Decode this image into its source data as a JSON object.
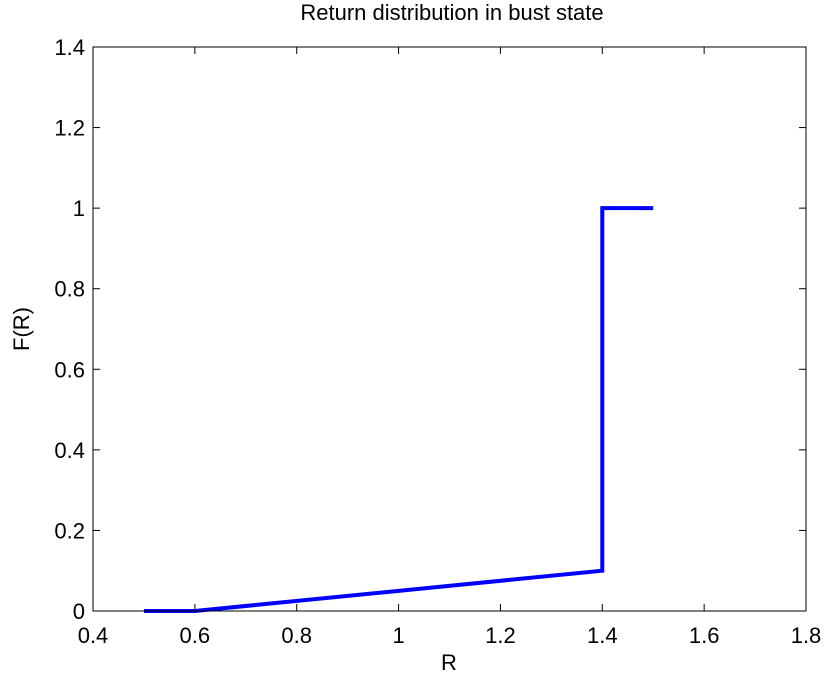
{
  "chart_data": {
    "type": "line",
    "title": "Return distribution in bust state",
    "xlabel": "R",
    "ylabel": "F(R)",
    "xlim": [
      0.4,
      1.8
    ],
    "ylim": [
      0,
      1.4
    ],
    "x_ticks": [
      "0.4",
      "0.6",
      "0.8",
      "1",
      "1.2",
      "1.4",
      "1.6",
      "1.8"
    ],
    "y_ticks": [
      "0",
      "0.2",
      "0.4",
      "0.6",
      "0.8",
      "1",
      "1.2",
      "1.4"
    ],
    "grid": false,
    "series": [
      {
        "color": "#0000ff",
        "x": [
          0.5,
          0.6,
          1.4,
          1.4,
          1.5
        ],
        "y": [
          0,
          0,
          0.1,
          1.0,
          1.0
        ]
      }
    ]
  }
}
